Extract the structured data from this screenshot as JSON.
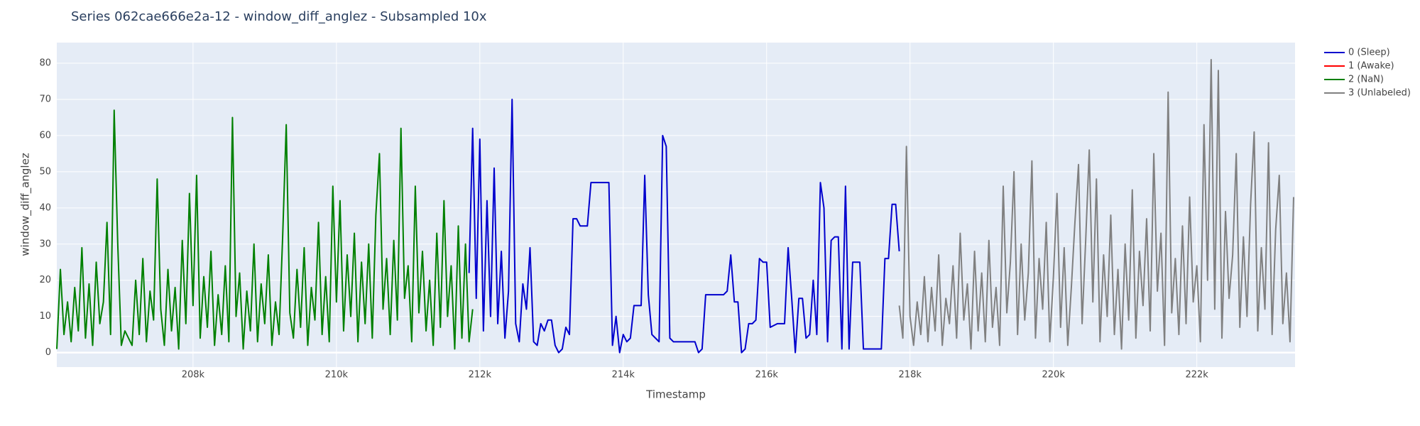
{
  "chart_data": {
    "type": "line",
    "title": "Series 062cae666e2a-12 - window_diff_anglez - Subsampled 10x",
    "x_label": "Timestamp",
    "y_label": "window_diff_anglez",
    "xlim": [
      206100,
      223370
    ],
    "ylim": [
      -4,
      85.7
    ],
    "xticks": [
      {
        "value": 208000,
        "label": "208k"
      },
      {
        "value": 210000,
        "label": "210k"
      },
      {
        "value": 212000,
        "label": "212k"
      },
      {
        "value": 214000,
        "label": "214k"
      },
      {
        "value": 216000,
        "label": "216k"
      },
      {
        "value": 218000,
        "label": "218k"
      },
      {
        "value": 220000,
        "label": "220k"
      },
      {
        "value": 222000,
        "label": "222k"
      }
    ],
    "yticks": [
      0,
      10,
      20,
      30,
      40,
      50,
      60,
      70,
      80
    ],
    "grid": true,
    "legend": "outside-right",
    "series": [
      {
        "name": "0 (Sleep)",
        "color": "#0000cd",
        "x": [
          211850,
          211900,
          211950,
          212000,
          212050,
          212100,
          212150,
          212200,
          212250,
          212300,
          212350,
          212400,
          212450,
          212500,
          212550,
          212600,
          212650,
          212700,
          212750,
          212800,
          212850,
          212900,
          212950,
          213000,
          213050,
          213100,
          213150,
          213200,
          213250,
          213300,
          213350,
          213400,
          213450,
          213500,
          213550,
          213600,
          213650,
          213700,
          213750,
          213800,
          213850,
          213900,
          213950,
          214000,
          214050,
          214100,
          214150,
          214200,
          214250,
          214300,
          214350,
          214400,
          214450,
          214500,
          214550,
          214600,
          214650,
          214700,
          214800,
          214900,
          215000,
          215050,
          215100,
          215150,
          215200,
          215300,
          215400,
          215450,
          215500,
          215550,
          215600,
          215650,
          215700,
          215750,
          215800,
          215850,
          215900,
          215950,
          216000,
          216050,
          216150,
          216250,
          216300,
          216350,
          216400,
          216450,
          216500,
          216550,
          216600,
          216650,
          216700,
          216750,
          216800,
          216850,
          216900,
          216950,
          217000,
          217050,
          217100,
          217150,
          217200,
          217250,
          217300,
          217350,
          217400,
          217500,
          217600,
          217650,
          217700,
          217750,
          217800,
          217850
        ],
        "values": [
          22,
          62,
          15,
          59,
          6,
          42,
          10,
          51,
          8,
          28,
          4,
          17,
          70,
          8,
          3,
          19,
          12,
          29,
          3,
          2,
          8,
          6,
          9,
          9,
          2,
          0,
          1,
          7,
          5,
          37,
          37,
          35,
          35,
          35,
          47,
          47,
          47,
          47,
          47,
          47,
          2,
          10,
          0,
          5,
          3,
          4,
          13,
          13,
          13,
          49,
          16,
          5,
          4,
          3,
          60,
          57,
          4,
          3,
          3,
          3,
          3,
          0,
          1,
          16,
          16,
          16,
          16,
          17,
          27,
          14,
          14,
          0,
          1,
          8,
          8,
          9,
          26,
          25,
          25,
          7,
          8,
          8,
          29,
          15,
          0,
          15,
          15,
          4,
          5,
          20,
          5,
          47,
          40,
          3,
          31,
          32,
          32,
          1,
          46,
          1,
          25,
          25,
          25,
          1,
          1,
          1,
          1,
          26,
          26,
          41,
          41,
          28
        ]
      },
      {
        "name": "1 (Awake)",
        "color": "#ff0000",
        "x": [],
        "values": []
      },
      {
        "name": "2 (NaN)",
        "color": "#008000",
        "x": [
          206100,
          206150,
          206200,
          206250,
          206300,
          206350,
          206400,
          206450,
          206500,
          206550,
          206600,
          206650,
          206700,
          206750,
          206800,
          206850,
          206900,
          206950,
          207000,
          207050,
          207100,
          207150,
          207200,
          207250,
          207300,
          207350,
          207400,
          207450,
          207500,
          207550,
          207600,
          207650,
          207700,
          207750,
          207800,
          207850,
          207900,
          207950,
          208000,
          208050,
          208100,
          208150,
          208200,
          208250,
          208300,
          208350,
          208400,
          208450,
          208500,
          208550,
          208600,
          208650,
          208700,
          208750,
          208800,
          208850,
          208900,
          208950,
          209000,
          209050,
          209100,
          209150,
          209200,
          209250,
          209300,
          209350,
          209400,
          209450,
          209500,
          209550,
          209600,
          209650,
          209700,
          209750,
          209800,
          209850,
          209900,
          209950,
          210000,
          210050,
          210100,
          210150,
          210200,
          210250,
          210300,
          210350,
          210400,
          210450,
          210500,
          210550,
          210600,
          210650,
          210700,
          210750,
          210800,
          210850,
          210900,
          210950,
          211000,
          211050,
          211100,
          211150,
          211200,
          211250,
          211300,
          211350,
          211400,
          211450,
          211500,
          211550,
          211600,
          211650,
          211700,
          211750,
          211800,
          211850,
          211900
        ],
        "values": [
          1,
          23,
          5,
          14,
          3,
          18,
          6,
          29,
          4,
          19,
          2,
          25,
          8,
          14,
          36,
          5,
          67,
          30,
          2,
          6,
          4,
          2,
          20,
          5,
          26,
          3,
          17,
          9,
          48,
          12,
          2,
          23,
          6,
          18,
          1,
          31,
          8,
          44,
          13,
          49,
          4,
          21,
          7,
          28,
          2,
          16,
          5,
          24,
          3,
          65,
          10,
          22,
          1,
          17,
          6,
          30,
          3,
          19,
          8,
          27,
          2,
          14,
          5,
          32,
          63,
          11,
          4,
          23,
          7,
          29,
          2,
          18,
          9,
          36,
          5,
          21,
          3,
          46,
          14,
          42,
          6,
          27,
          10,
          33,
          3,
          25,
          8,
          30,
          4,
          38,
          55,
          12,
          26,
          5,
          31,
          9,
          62,
          15,
          24,
          3,
          46,
          11,
          28,
          6,
          20,
          2,
          33,
          7,
          42,
          10,
          24,
          1,
          35,
          4,
          30,
          3,
          12
        ]
      },
      {
        "name": "3 (Unlabeled)",
        "color": "#808080",
        "x": [
          217850,
          217900,
          217950,
          218000,
          218050,
          218100,
          218150,
          218200,
          218250,
          218300,
          218350,
          218400,
          218450,
          218500,
          218550,
          218600,
          218650,
          218700,
          218750,
          218800,
          218850,
          218900,
          218950,
          219000,
          219050,
          219100,
          219150,
          219200,
          219250,
          219300,
          219350,
          219400,
          219450,
          219500,
          219550,
          219600,
          219650,
          219700,
          219750,
          219800,
          219850,
          219900,
          219950,
          220000,
          220050,
          220100,
          220150,
          220200,
          220250,
          220300,
          220350,
          220400,
          220450,
          220500,
          220550,
          220600,
          220650,
          220700,
          220750,
          220800,
          220850,
          220900,
          220950,
          221000,
          221050,
          221100,
          221150,
          221200,
          221250,
          221300,
          221350,
          221400,
          221450,
          221500,
          221550,
          221600,
          221650,
          221700,
          221750,
          221800,
          221850,
          221900,
          221950,
          222000,
          222050,
          222100,
          222150,
          222200,
          222250,
          222300,
          222350,
          222400,
          222450,
          222500,
          222550,
          222600,
          222650,
          222700,
          222750,
          222800,
          222850,
          222900,
          222950,
          223000,
          223050,
          223100,
          223150,
          223200,
          223250,
          223300,
          223350
        ],
        "values": [
          13,
          4,
          57,
          10,
          2,
          14,
          5,
          21,
          3,
          18,
          6,
          27,
          2,
          15,
          8,
          24,
          4,
          33,
          9,
          19,
          1,
          28,
          6,
          22,
          3,
          31,
          7,
          18,
          2,
          46,
          11,
          25,
          50,
          5,
          30,
          9,
          22,
          53,
          4,
          26,
          12,
          36,
          3,
          21,
          44,
          7,
          29,
          2,
          18,
          36,
          52,
          8,
          31,
          56,
          14,
          48,
          3,
          27,
          10,
          38,
          5,
          23,
          1,
          30,
          9,
          45,
          4,
          28,
          13,
          37,
          6,
          55,
          17,
          33,
          2,
          72,
          11,
          26,
          5,
          35,
          8,
          43,
          14,
          24,
          3,
          63,
          20,
          81,
          12,
          78,
          4,
          39,
          15,
          27,
          55,
          7,
          32,
          10,
          41,
          61,
          6,
          29,
          12,
          58,
          5,
          34,
          49,
          8,
          22,
          3,
          43
        ]
      }
    ]
  }
}
